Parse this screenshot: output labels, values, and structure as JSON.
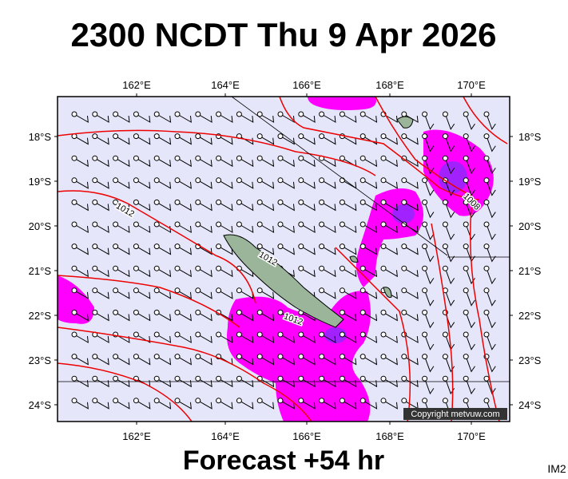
{
  "title": "2300 NCDT Thu 9 Apr 2026",
  "footer": "Forecast +54 hr",
  "corner_label": "IM2",
  "copyright": "Copyright metvuw.com",
  "longitude_labels": [
    "162°E",
    "164°E",
    "166°E",
    "168°E",
    "170°E"
  ],
  "latitude_labels": [
    "18°S",
    "19°S",
    "20°S",
    "21°S",
    "22°S",
    "23°S",
    "24°S"
  ],
  "isobar_labels": [
    "1012",
    "1012",
    "1012",
    "1008"
  ]
}
